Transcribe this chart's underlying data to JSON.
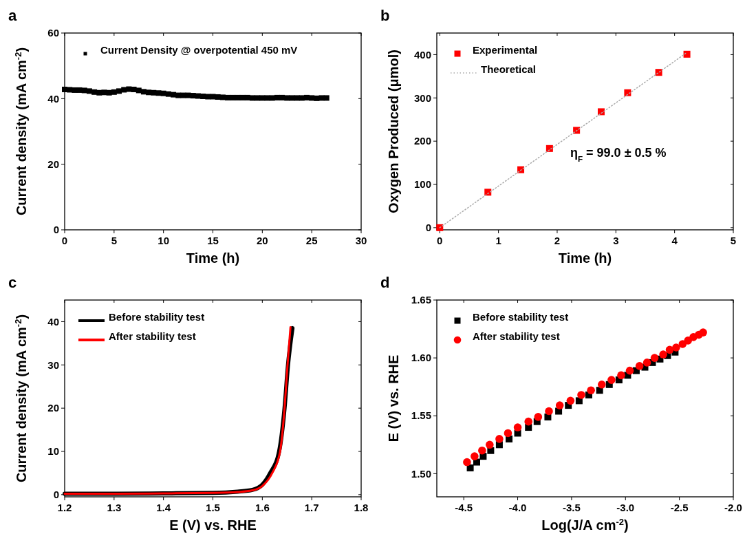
{
  "chart_data": [
    {
      "type": "scatter",
      "title": "a",
      "xlabel": "Time (h)",
      "ylabel": "Current density (mA cm$^{-2}$)",
      "xlim": [
        0,
        30
      ],
      "ylim": [
        0,
        60
      ],
      "xticks": [
        0,
        5,
        10,
        15,
        20,
        25,
        30
      ],
      "yticks": [
        0,
        20,
        40,
        60
      ],
      "legend": "top left",
      "grid": false,
      "series": [
        {
          "name": "Current Density @ overpotential 450 mV",
          "color": "#000000",
          "marker": "square",
          "x": [
            0,
            0.5,
            1,
            1.5,
            2,
            2.5,
            3,
            3.5,
            4,
            4.5,
            5,
            5.5,
            6,
            6.5,
            7,
            7.5,
            8,
            8.5,
            9,
            9.5,
            10,
            10.5,
            11,
            11.5,
            12,
            12.5,
            13,
            13.5,
            14,
            14.5,
            15,
            15.5,
            16,
            16.5,
            17,
            17.5,
            18,
            18.5,
            19,
            19.5,
            20,
            20.5,
            21,
            21.5,
            22,
            22.5,
            23,
            23.5,
            24,
            24.5,
            25,
            25.5,
            26,
            26.5
          ],
          "values": [
            42.8,
            42.7,
            42.6,
            42.6,
            42.5,
            42.3,
            42.0,
            41.8,
            41.9,
            41.8,
            42.0,
            42.3,
            42.7,
            42.9,
            42.8,
            42.5,
            42.1,
            41.9,
            41.8,
            41.7,
            41.6,
            41.4,
            41.2,
            41.0,
            41.0,
            41.0,
            40.9,
            40.8,
            40.7,
            40.6,
            40.6,
            40.5,
            40.4,
            40.3,
            40.3,
            40.3,
            40.3,
            40.3,
            40.2,
            40.2,
            40.2,
            40.2,
            40.2,
            40.3,
            40.3,
            40.2,
            40.2,
            40.2,
            40.2,
            40.3,
            40.2,
            40.1,
            40.2,
            40.2
          ]
        }
      ]
    },
    {
      "type": "scatter",
      "title": "b",
      "xlabel": "Time (h)",
      "ylabel": "Oxygen Produced (μmol)",
      "xlim": [
        -0.05,
        5
      ],
      "ylim": [
        -5,
        450
      ],
      "xticks": [
        0,
        1,
        2,
        3,
        4,
        5
      ],
      "yticks": [
        0,
        100,
        200,
        300,
        400
      ],
      "legend": "top left",
      "grid": false,
      "annotations": [
        "η$_{F}$ = 99.0 ± 0.5 %"
      ],
      "series": [
        {
          "name": "Experimental",
          "color": "#ff0000",
          "marker": "square",
          "x": [
            0,
            0.82,
            1.38,
            1.87,
            2.33,
            2.75,
            3.2,
            3.73,
            4.21
          ],
          "values": [
            0,
            82,
            134,
            183,
            225,
            268,
            312,
            359,
            401
          ]
        },
        {
          "name": "Theoretical",
          "type": "line",
          "color": "#aaaaaa",
          "line_style": "dotted",
          "x": [
            0,
            4.21
          ],
          "values": [
            0,
            405
          ]
        }
      ]
    },
    {
      "type": "line",
      "title": "c",
      "xlabel": "E (V) vs. RHE",
      "ylabel": "Current density (mA cm$^{-2}$)",
      "xlim": [
        1.2,
        1.8
      ],
      "ylim": [
        -0.5,
        45
      ],
      "xticks": [
        1.2,
        1.3,
        1.4,
        1.5,
        1.6,
        1.7,
        1.8
      ],
      "yticks": [
        0,
        10,
        20,
        30,
        40
      ],
      "legend": "top left",
      "grid": false,
      "series": [
        {
          "name": "Before stability test",
          "color": "#000000",
          "x": [
            1.2,
            1.3,
            1.4,
            1.5,
            1.55,
            1.58,
            1.6,
            1.616,
            1.634,
            1.645,
            1.652,
            1.661
          ],
          "values": [
            0.2,
            0.2,
            0.3,
            0.4,
            0.7,
            1.1,
            2.3,
            5,
            10,
            20,
            30,
            38.5
          ]
        },
        {
          "name": "After stability test",
          "color": "#ff0000",
          "x": [
            1.2,
            1.3,
            1.4,
            1.5,
            1.55,
            1.58,
            1.6,
            1.62,
            1.636,
            1.645,
            1.651,
            1.657
          ],
          "values": [
            0.2,
            0.2,
            0.3,
            0.4,
            0.6,
            1.0,
            2.0,
            5,
            10,
            20,
            30,
            38.7
          ]
        }
      ]
    },
    {
      "type": "scatter",
      "title": "d",
      "xlabel": "Log(J/A cm$^{-2}$)",
      "ylabel": "E (V) vs. RHE",
      "xlim": [
        -4.75,
        -2.0
      ],
      "ylim": [
        1.48,
        1.65
      ],
      "xticks": [
        {
          "value": -4.5,
          "label": "-4.5"
        },
        {
          "value": -4,
          "label": "-4.0"
        },
        {
          "value": -3.5,
          "label": "-3.5"
        },
        {
          "value": -3,
          "label": "-3.0"
        },
        {
          "value": -2.5,
          "label": "-2.5"
        },
        {
          "value": -2,
          "label": "-2.0"
        }
      ],
      "yticks": [
        {
          "value": 1.5,
          "label": "1.50"
        },
        {
          "value": 1.55,
          "label": "1.55"
        },
        {
          "value": 1.6,
          "label": "1.60"
        },
        {
          "value": 1.65,
          "label": "1.65"
        }
      ],
      "legend": "top left",
      "grid": false,
      "series": [
        {
          "name": "Before stability test",
          "color": "#000000",
          "marker": "square",
          "x": [
            -4.44,
            -4.38,
            -4.32,
            -4.25,
            -4.17,
            -4.08,
            -4.0,
            -3.9,
            -3.82,
            -3.72,
            -3.62,
            -3.53,
            -3.43,
            -3.34,
            -3.24,
            -3.15,
            -3.06,
            -2.98,
            -2.9,
            -2.82,
            -2.75,
            -2.68,
            -2.61,
            -2.54
          ],
          "values": [
            1.505,
            1.51,
            1.515,
            1.52,
            1.525,
            1.53,
            1.535,
            1.54,
            1.545,
            1.549,
            1.554,
            1.559,
            1.563,
            1.568,
            1.572,
            1.577,
            1.581,
            1.585,
            1.589,
            1.592,
            1.596,
            1.599,
            1.602,
            1.605
          ]
        },
        {
          "name": "After stability test",
          "color": "#ff0000",
          "marker": "circle",
          "x": [
            -4.47,
            -4.4,
            -4.33,
            -4.26,
            -4.17,
            -4.09,
            -4.0,
            -3.9,
            -3.81,
            -3.71,
            -3.61,
            -3.51,
            -3.41,
            -3.32,
            -3.22,
            -3.13,
            -3.04,
            -2.96,
            -2.87,
            -2.8,
            -2.73,
            -2.65,
            -2.59,
            -2.53,
            -2.47,
            -2.42,
            -2.37,
            -2.32,
            -2.28
          ],
          "values": [
            1.51,
            1.515,
            1.52,
            1.525,
            1.53,
            1.535,
            1.54,
            1.545,
            1.549,
            1.554,
            1.559,
            1.563,
            1.568,
            1.572,
            1.577,
            1.581,
            1.585,
            1.589,
            1.593,
            1.596,
            1.6,
            1.603,
            1.607,
            1.609,
            1.612,
            1.615,
            1.618,
            1.62,
            1.622
          ]
        }
      ]
    }
  ]
}
